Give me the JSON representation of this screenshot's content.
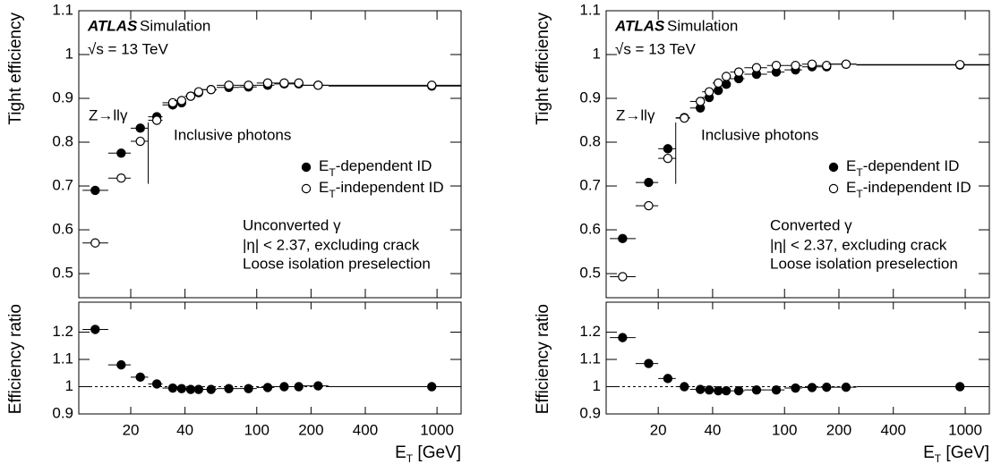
{
  "chart_data": [
    {
      "type": "scatter",
      "ylabel": "Tight efficiency",
      "xlabel": "ET [GeV]",
      "xlim": [
        10.3,
        1360
      ],
      "xticks": [
        20,
        40,
        100,
        200,
        400,
        1000
      ],
      "ylim": [
        0.445,
        1.1
      ],
      "yticks": [
        0.5,
        0.6,
        0.7,
        0.8,
        0.9,
        1,
        1.1
      ],
      "x": [
        12.7,
        17.7,
        22.6,
        27.9,
        34.2,
        38.3,
        43,
        47.6,
        55.8,
        70,
        90,
        115,
        142,
        171,
        219,
        935
      ],
      "bins": [
        10.8,
        15,
        20,
        25,
        30,
        35,
        40,
        45,
        50,
        60,
        80,
        100,
        125,
        150,
        175,
        250,
        1500
      ],
      "divider_x": 25,
      "annotations": [
        "ATLAS",
        "Simulation",
        "√s = 13 TeV",
        "Z→llγ",
        "Inclusive photons",
        "Unconverted γ",
        "|η| < 2.37, excluding crack",
        "Loose isolation preselection"
      ],
      "series": [
        {
          "name": "ET-dependent ID",
          "marker": "filled",
          "color": "#000000",
          "values": [
            0.69,
            0.775,
            0.832,
            0.858,
            0.885,
            0.89,
            0.905,
            0.913,
            0.92,
            0.925,
            0.926,
            0.93,
            0.933,
            0.933,
            0.93,
            0.928
          ]
        },
        {
          "name": "ET-independent ID",
          "marker": "open",
          "color": "#000000",
          "values": [
            0.57,
            0.718,
            0.802,
            0.85,
            0.89,
            0.895,
            0.905,
            0.915,
            0.92,
            0.93,
            0.93,
            0.935,
            0.935,
            0.935,
            0.93,
            0.93
          ]
        }
      ],
      "ratio": {
        "ylabel": "Efficiency ratio",
        "ylim": [
          0.9,
          1.31
        ],
        "yticks": [
          0.9,
          1,
          1.1,
          1.2
        ],
        "reference_line": 1,
        "values": [
          1.21,
          1.08,
          1.035,
          1.01,
          0.995,
          0.993,
          0.99,
          0.99,
          0.99,
          0.993,
          0.993,
          0.997,
          1.0,
          1.0,
          1.003,
          1.0
        ]
      }
    },
    {
      "type": "scatter",
      "ylabel": "Tight efficiency",
      "xlabel": "ET [GeV]",
      "xlim": [
        10.3,
        1360
      ],
      "xticks": [
        20,
        40,
        100,
        200,
        400,
        1000
      ],
      "ylim": [
        0.445,
        1.1
      ],
      "yticks": [
        0.5,
        0.6,
        0.7,
        0.8,
        0.9,
        1,
        1.1
      ],
      "x": [
        12.7,
        17.7,
        22.6,
        27.9,
        34.2,
        38.3,
        43,
        47.6,
        55.8,
        70,
        90,
        115,
        142,
        171,
        219,
        935
      ],
      "bins": [
        10.8,
        15,
        20,
        25,
        30,
        35,
        40,
        45,
        50,
        60,
        80,
        100,
        125,
        150,
        175,
        250,
        1500
      ],
      "divider_x": 25,
      "annotations": [
        "ATLAS",
        "Simulation",
        "√s = 13 TeV",
        "Z→llγ",
        "Inclusive photons",
        "Converted γ",
        "|η| < 2.37, excluding crack",
        "Loose isolation preselection"
      ],
      "series": [
        {
          "name": "ET-dependent ID",
          "marker": "filled",
          "color": "#000000",
          "values": [
            0.58,
            0.708,
            0.785,
            0.856,
            0.878,
            0.902,
            0.918,
            0.932,
            0.945,
            0.955,
            0.96,
            0.965,
            0.972,
            0.972,
            0.978,
            0.976
          ]
        },
        {
          "name": "ET-independent ID",
          "marker": "open",
          "color": "#000000",
          "values": [
            0.493,
            0.655,
            0.763,
            0.855,
            0.893,
            0.915,
            0.935,
            0.95,
            0.96,
            0.97,
            0.975,
            0.975,
            0.978,
            0.975,
            0.978,
            0.977
          ]
        }
      ],
      "ratio": {
        "ylabel": "Efficiency ratio",
        "ylim": [
          0.9,
          1.31
        ],
        "yticks": [
          0.9,
          1,
          1.1,
          1.2
        ],
        "reference_line": 1,
        "values": [
          1.18,
          1.085,
          1.03,
          1.0,
          0.99,
          0.988,
          0.985,
          0.985,
          0.985,
          0.988,
          0.988,
          0.995,
          0.997,
          0.998,
          0.998,
          1.0
        ]
      }
    }
  ]
}
